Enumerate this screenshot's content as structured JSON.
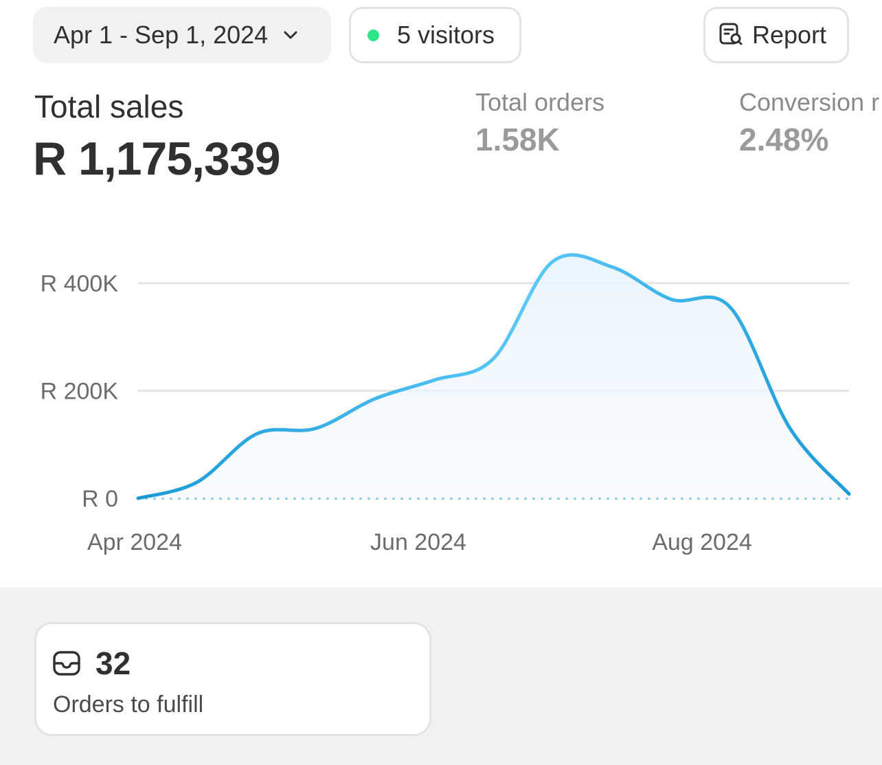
{
  "header": {
    "date_range": "Apr 1 - Sep 1, 2024",
    "visitors_label": "5 visitors",
    "report_label": "Report"
  },
  "metrics": {
    "total_sales": {
      "title": "Total sales",
      "value": "R 1,175,339"
    },
    "total_orders": {
      "title": "Total orders",
      "value": "1.58K"
    },
    "conversion": {
      "title": "Conversion r",
      "value": "2.48%"
    }
  },
  "chart_data": {
    "type": "area",
    "x_tick_labels": [
      "Apr 2024",
      "Jun 2024",
      "Aug 2024"
    ],
    "y_tick_labels": [
      "R 400K",
      "R 200K",
      "R 0"
    ],
    "y_ticks": [
      400000,
      200000,
      0
    ],
    "ylim": [
      0,
      420000
    ],
    "grid": true,
    "series": [
      {
        "x": [
          0,
          0.083,
          0.167,
          0.25,
          0.333,
          0.417,
          0.5,
          0.583,
          0.667,
          0.75,
          0.833,
          0.917,
          1.0
        ],
        "values": [
          0,
          30000,
          120000,
          130000,
          185000,
          220000,
          260000,
          440000,
          430000,
          370000,
          355000,
          130000,
          8000
        ]
      }
    ],
    "colors": {
      "line_start": "#1a9ad6",
      "line_end": "#5ac8fa",
      "grid": "#e3e3e3",
      "baseline_dots": "#6ec3e6"
    }
  },
  "fulfill_card": {
    "icon": "inbox-icon",
    "count": "32",
    "label": "Orders to fulfill"
  },
  "colors": {
    "accent_dot": "#2ee58a",
    "bottom_bg": "#f1f1f1"
  }
}
